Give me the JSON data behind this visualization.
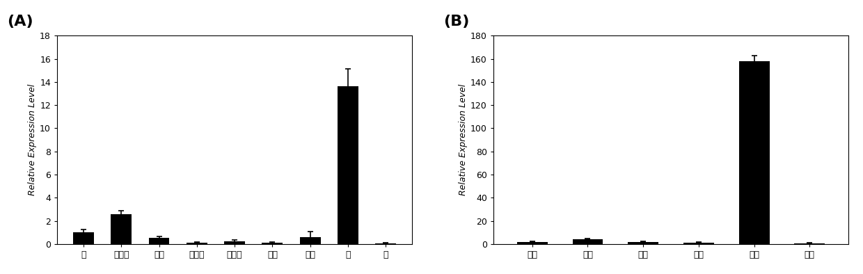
{
  "panel_A": {
    "label": "(A)",
    "categories": [
      "根",
      "成熟茎",
      "幼茎",
      "茎表皮",
      "成熟叶",
      "幼叶",
      "叶柄",
      "花",
      "果"
    ],
    "values": [
      1.0,
      2.6,
      0.55,
      0.15,
      0.25,
      0.12,
      0.6,
      13.6,
      0.08
    ],
    "errors": [
      0.25,
      0.3,
      0.1,
      0.05,
      0.1,
      0.04,
      0.5,
      1.5,
      0.04
    ],
    "ylabel": "Relative Expression Level",
    "ylim": [
      0,
      18
    ],
    "yticks": [
      0,
      2,
      4,
      6,
      8,
      10,
      12,
      14,
      16,
      18
    ]
  },
  "panel_B": {
    "label": "(B)",
    "categories": [
      "花茎",
      "叶柄",
      "花败",
      "萊片",
      "花趓",
      "雄蕨"
    ],
    "values": [
      2.0,
      4.5,
      2.0,
      1.5,
      158.0,
      0.8
    ],
    "errors": [
      0.3,
      0.5,
      0.3,
      0.3,
      5.0,
      0.2
    ],
    "ylabel": "Relative Expression Level",
    "ylim": [
      0,
      180
    ],
    "yticks": [
      0,
      20,
      40,
      60,
      80,
      100,
      120,
      140,
      160,
      180
    ]
  },
  "bar_color": "#000000",
  "bar_width": 0.55,
  "background_color": "#ffffff",
  "label_fontsize": 16,
  "tick_fontsize": 9,
  "ylabel_fontsize": 9
}
